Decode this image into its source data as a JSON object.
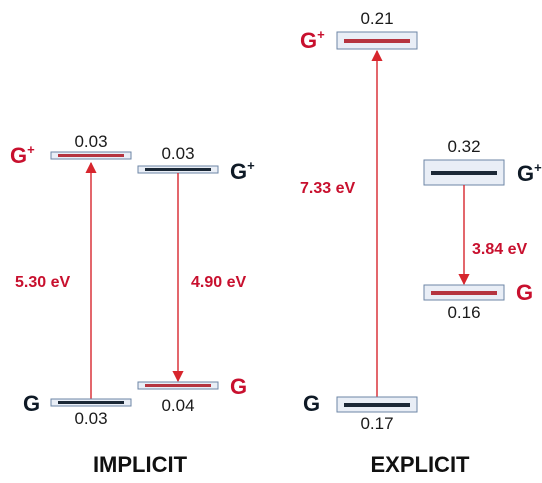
{
  "colors": {
    "red": "#c8102e",
    "dark": "#0f1a26",
    "bar_red": "#b5343f",
    "bar_dark": "#1b2836",
    "box_stroke": "#6d86a6",
    "box_fill": "#e9eef6",
    "arrow": "#d7262d"
  },
  "implicit": {
    "title": "IMPLICIT",
    "left": {
      "upper_label": "G",
      "upper_sup": "+",
      "upper_value": "0.03",
      "lower_label": "G",
      "lower_value": "0.03",
      "energy": "5.30 eV"
    },
    "right": {
      "upper_label": "G",
      "upper_sup": "+",
      "upper_value": "0.03",
      "lower_label": "G",
      "lower_value": "0.04",
      "energy": "4.90 eV"
    }
  },
  "explicit": {
    "title": "EXPLICIT",
    "left": {
      "upper_label": "G",
      "upper_sup": "+",
      "upper_value": "0.21",
      "lower_label": "G",
      "lower_value": "0.17",
      "energy": "7.33 eV"
    },
    "right": {
      "upper_label": "G",
      "upper_sup": "+",
      "upper_value": "0.32",
      "lower_label": "G",
      "lower_value": "0.16",
      "energy": "3.84 eV"
    }
  }
}
